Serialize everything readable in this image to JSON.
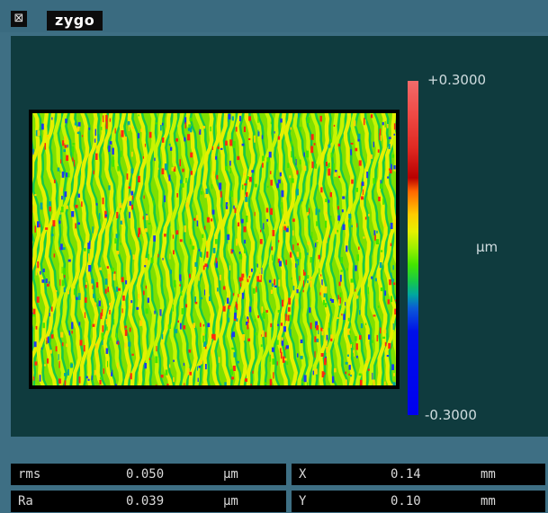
{
  "titlebar": {
    "close_glyph": "⊠",
    "brand": "zygo"
  },
  "plot": {
    "colormap": [
      "#f26b6b",
      "#e02a22",
      "#b80000",
      "#ff6600",
      "#ffcc00",
      "#e6f000",
      "#9cf000",
      "#43e600",
      "#16c84a",
      "#00a6a0",
      "#0b5ad6",
      "#0010e8"
    ]
  },
  "colorbar": {
    "max_label": "+0.3000",
    "unit_label": "µm",
    "min_label": "-0.3000"
  },
  "readouts": {
    "rms": {
      "key": "rms",
      "value": "0.050",
      "unit": "µm"
    },
    "ra": {
      "key": "Ra",
      "value": "0.039",
      "unit": "µm"
    },
    "x": {
      "key": "X",
      "value": "0.14",
      "unit": "mm"
    },
    "y": {
      "key": "Y",
      "value": "0.10",
      "unit": "mm"
    }
  }
}
